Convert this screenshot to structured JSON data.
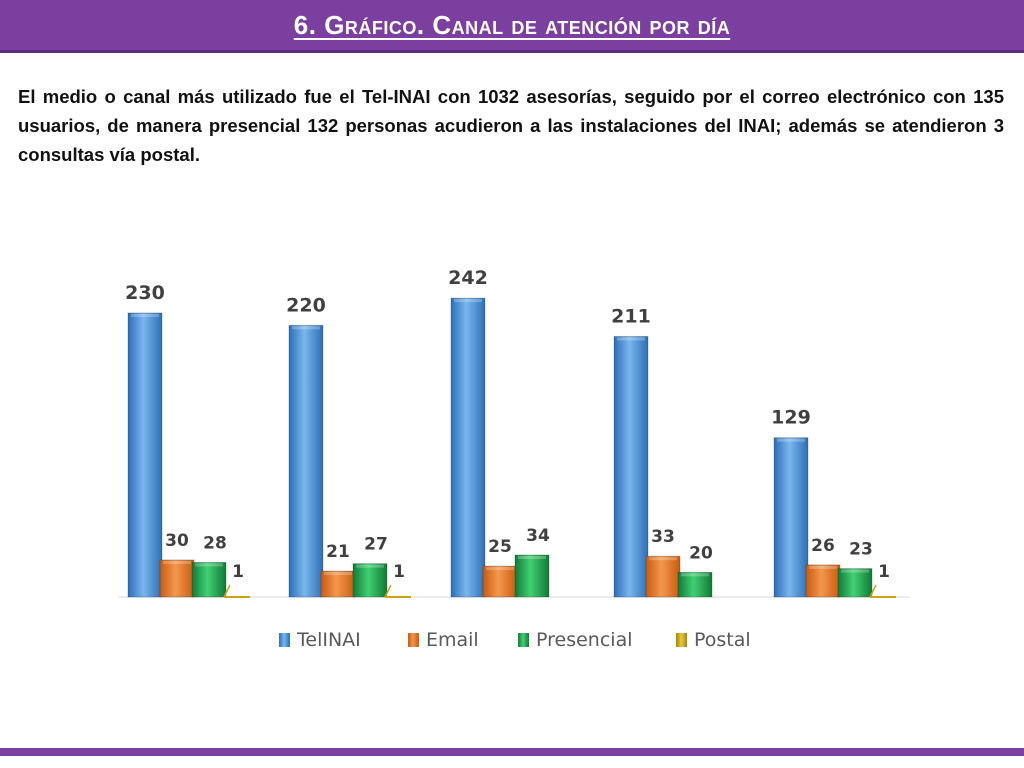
{
  "title": "6. Gráfico. Canal de atención por día",
  "paragraph": "El medio o canal más utilizado fue el Tel-INAI con 1032 asesorías, seguido por el correo electrónico con 135 usuarios, de manera presencial 132 personas acudieron a las instalaciones del INAI; además se atendieron 3 consultas vía postal.",
  "colors": {
    "title_bar": "#7b3fa0",
    "telinai": "#4a8fd4",
    "email": "#e8701f",
    "presencial": "#1ea24e",
    "postal": "#c9a416"
  },
  "chart_data": {
    "type": "bar",
    "title": "",
    "xlabel": "",
    "ylabel": "",
    "categories": [
      "",
      "",
      "",
      "",
      ""
    ],
    "legend_position": "bottom",
    "grid": false,
    "series": [
      {
        "name": "TelINAI",
        "color": "#4a8fd4",
        "values": [
          230,
          220,
          242,
          211,
          129
        ]
      },
      {
        "name": "Email",
        "color": "#e8701f",
        "values": [
          30,
          21,
          25,
          33,
          26
        ]
      },
      {
        "name": "Presencial",
        "color": "#1ea24e",
        "values": [
          28,
          27,
          34,
          20,
          23
        ]
      },
      {
        "name": "Postal",
        "color": "#c9a416",
        "values": [
          1,
          1,
          null,
          null,
          1
        ]
      }
    ]
  }
}
